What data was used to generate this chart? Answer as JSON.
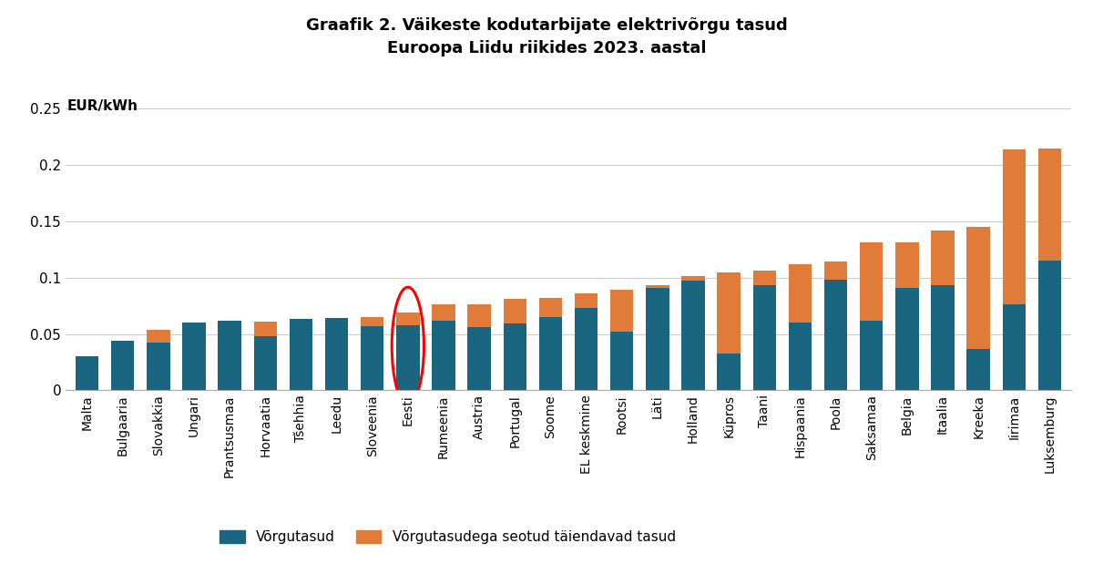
{
  "title": "Graafik 2. Väikeste kodutarbijate elektrivõrgu tasud\nEuroopa Liidu riikides 2023. aastal",
  "ylabel": "EUR/kWh",
  "categories": [
    "Malta",
    "Bulgaaria",
    "Slovakkia",
    "Ungari",
    "Prantsusmaa",
    "Horvaatia",
    "Tšehhia",
    "Leedu",
    "Sloveenia",
    "Eesti",
    "Rumeenia",
    "Austria",
    "Portugal",
    "Soome",
    "EL keskmine",
    "Rootsi",
    "Läti",
    "Holland",
    "Küpros",
    "Taani",
    "Hispaania",
    "Poola",
    "Saksamaa",
    "Belgia",
    "Itaalia",
    "Kreeka",
    "Iirimaa",
    "Luksemburg"
  ],
  "network_fees": [
    0.03,
    0.044,
    0.042,
    0.06,
    0.062,
    0.048,
    0.063,
    0.064,
    0.057,
    0.058,
    0.062,
    0.056,
    0.059,
    0.065,
    0.073,
    0.052,
    0.091,
    0.097,
    0.033,
    0.093,
    0.06,
    0.098,
    0.062,
    0.091,
    0.093,
    0.037,
    0.076,
    0.115
  ],
  "additional_fees": [
    0.0,
    0.0,
    0.012,
    0.0,
    0.0,
    0.013,
    0.0,
    0.0,
    0.008,
    0.011,
    0.014,
    0.02,
    0.022,
    0.017,
    0.013,
    0.037,
    0.002,
    0.004,
    0.072,
    0.013,
    0.052,
    0.016,
    0.069,
    0.04,
    0.049,
    0.108,
    0.138,
    0.1
  ],
  "bar_color_blue": "#1a6580",
  "bar_color_orange": "#e07b39",
  "highlight_index": 9,
  "ellipse_color": "red",
  "ylim": [
    0,
    0.27
  ],
  "yticks": [
    0,
    0.05,
    0.1,
    0.15,
    0.2,
    0.25
  ],
  "ytick_labels": [
    "0",
    "0.05",
    "0.1",
    "0.15",
    "0.2",
    "0.25"
  ],
  "legend_label_blue": "Võrgutasud",
  "legend_label_orange": "Võrgutasudega seotud täiendavad tasud",
  "bg_color": "#ffffff",
  "grid_color": "#cccccc"
}
